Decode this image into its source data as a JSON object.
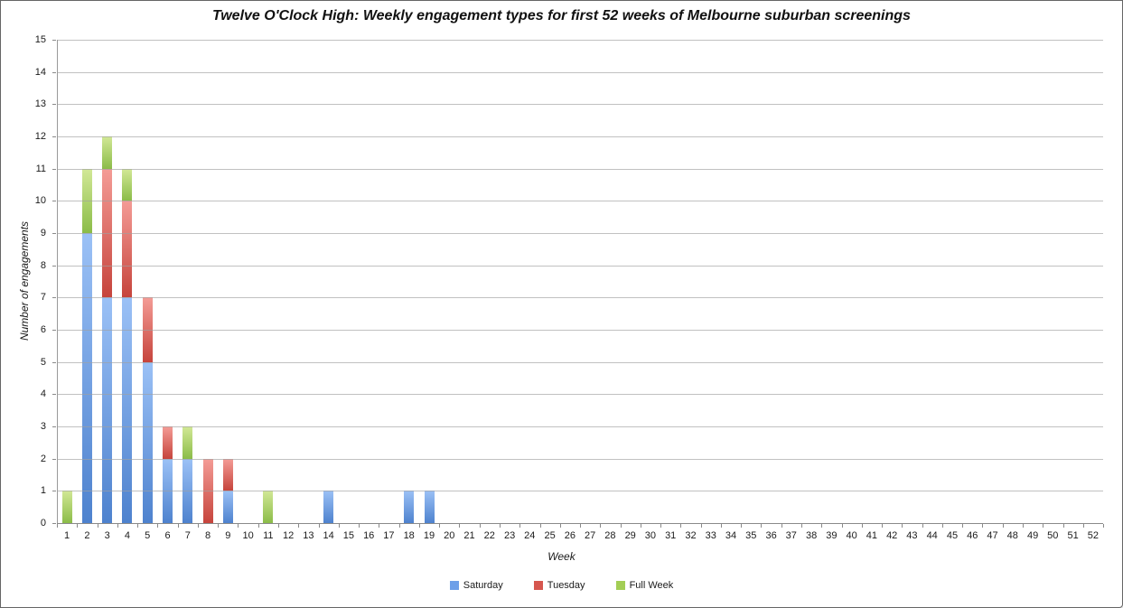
{
  "title": "Twelve O'Clock High: Weekly engagement types for first 52 weeks of Melbourne suburban screenings",
  "axes": {
    "x_label": "Week",
    "y_label": "Number of engagements"
  },
  "legend": [
    {
      "label": "Saturday",
      "color": "#6D9FE8"
    },
    {
      "label": "Tuesday",
      "color": "#D6564E"
    },
    {
      "label": "Full Week",
      "color": "#A3CE55"
    }
  ],
  "colors": {
    "gridline": "#A0A0A0",
    "axis": "#8A8A8A",
    "title_text": "#111111"
  },
  "chart_data": {
    "type": "bar",
    "stacked": true,
    "title": "Twelve O'Clock High: Weekly engagement types for first 52 weeks of Melbourne suburban screenings",
    "xlabel": "Week",
    "ylabel": "Number of engagements",
    "ylim": [
      0,
      15
    ],
    "y_step": 1,
    "grid": true,
    "legend_position": "bottom",
    "categories": [
      1,
      2,
      3,
      4,
      5,
      6,
      7,
      8,
      9,
      10,
      11,
      12,
      13,
      14,
      15,
      16,
      17,
      18,
      19,
      20,
      21,
      22,
      23,
      24,
      25,
      26,
      27,
      28,
      29,
      30,
      31,
      32,
      33,
      34,
      35,
      36,
      37,
      38,
      39,
      40,
      41,
      42,
      43,
      44,
      45,
      46,
      47,
      48,
      49,
      50,
      51,
      52
    ],
    "series": [
      {
        "name": "Saturday",
        "color_top": "#9BC1F6",
        "color_bottom": "#4E82CE",
        "values": [
          0,
          9,
          7,
          7,
          5,
          2,
          2,
          0,
          1,
          0,
          0,
          0,
          0,
          1,
          0,
          0,
          0,
          1,
          1,
          0,
          0,
          0,
          0,
          0,
          0,
          0,
          0,
          0,
          0,
          0,
          0,
          0,
          0,
          0,
          0,
          0,
          0,
          0,
          0,
          0,
          0,
          0,
          0,
          0,
          0,
          0,
          0,
          0,
          0,
          0,
          0,
          0
        ]
      },
      {
        "name": "Tuesday",
        "color_top": "#F49C96",
        "color_bottom": "#C6443C",
        "values": [
          0,
          0,
          4,
          3,
          2,
          1,
          0,
          2,
          1,
          0,
          0,
          0,
          0,
          0,
          0,
          0,
          0,
          0,
          0,
          0,
          0,
          0,
          0,
          0,
          0,
          0,
          0,
          0,
          0,
          0,
          0,
          0,
          0,
          0,
          0,
          0,
          0,
          0,
          0,
          0,
          0,
          0,
          0,
          0,
          0,
          0,
          0,
          0,
          0,
          0,
          0,
          0
        ]
      },
      {
        "name": "Full Week",
        "color_top": "#D2E896",
        "color_bottom": "#8BBC48",
        "values": [
          1,
          2,
          1,
          1,
          0,
          0,
          1,
          0,
          0,
          0,
          1,
          0,
          0,
          0,
          0,
          0,
          0,
          0,
          0,
          0,
          0,
          0,
          0,
          0,
          0,
          0,
          0,
          0,
          0,
          0,
          0,
          0,
          0,
          0,
          0,
          0,
          0,
          0,
          0,
          0,
          0,
          0,
          0,
          0,
          0,
          0,
          0,
          0,
          0,
          0,
          0,
          0
        ]
      }
    ]
  }
}
